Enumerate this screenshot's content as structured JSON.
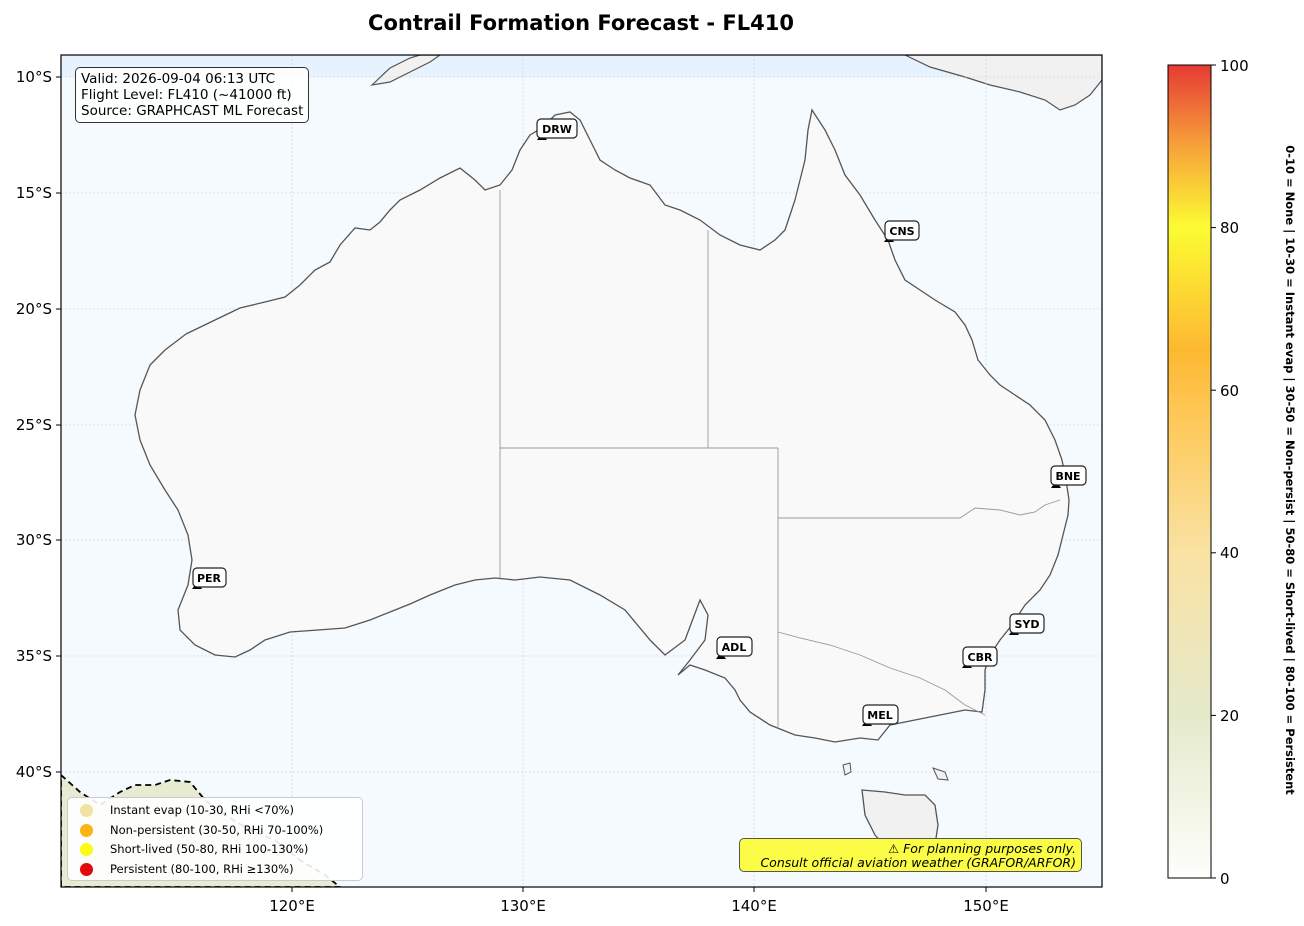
{
  "title": "Contrail Formation Forecast - FL410",
  "info": {
    "valid": "Valid: 2026-09-04 06:13 UTC",
    "flight_level": "Flight Level: FL410 (~41000 ft)",
    "source": "Source: GRAPHCAST ML Forecast"
  },
  "axes": {
    "lon_ticks": [
      "120°E",
      "130°E",
      "140°E",
      "150°E"
    ],
    "lat_ticks": [
      "10°S",
      "15°S",
      "20°S",
      "25°S",
      "30°S",
      "35°S",
      "40°S"
    ]
  },
  "colorbar": {
    "ticks": [
      "0",
      "20",
      "40",
      "60",
      "80",
      "100"
    ],
    "label": "0-10 = None  |  10-30 = Instant evap  |  30-50 = Non-persist  |  50-80 = Short-lived  |  80-100 = Persistent",
    "colors": [
      "#fefefb",
      "#e5eacb",
      "#f9e2a3",
      "#fecb60",
      "#fdb831",
      "#fcfc33",
      "#f7a23a",
      "#e63a34"
    ]
  },
  "airports": [
    {
      "code": "DRW"
    },
    {
      "code": "CNS"
    },
    {
      "code": "BNE"
    },
    {
      "code": "PER"
    },
    {
      "code": "ADL"
    },
    {
      "code": "SYD"
    },
    {
      "code": "CBR"
    },
    {
      "code": "MEL"
    }
  ],
  "legend": [
    {
      "label": "Instant evap (10-30, RHi <70%)",
      "color": "#f2e3a2"
    },
    {
      "label": "Non-persistent (30-50, RHi 70-100%)",
      "color": "#fcb314"
    },
    {
      "label": "Short-lived (50-80, RHi 100-130%)",
      "color": "#fbfb13"
    },
    {
      "label": "Persistent (80-100, RHi ≥130%)",
      "color": "#e00a0a"
    }
  ],
  "disclaimer": {
    "line1": "⚠ For planning purposes only.",
    "line2": "Consult official aviation weather (GRAFOR/ARFOR)"
  }
}
